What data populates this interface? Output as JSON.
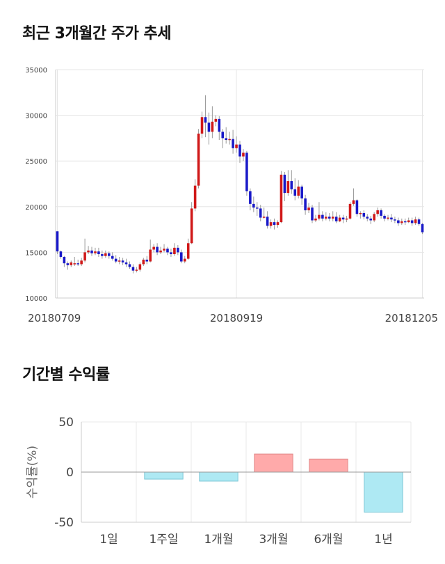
{
  "sections": {
    "price_title": "최근 3개월간 주가 추세",
    "returns_title": "기간별 수익률"
  },
  "chart_data": [
    {
      "type": "candlestick",
      "title": "최근 3개월간 주가 추세",
      "ylim": [
        10000,
        35000
      ],
      "yticks": [
        10000,
        15000,
        20000,
        25000,
        30000,
        35000
      ],
      "xtick_labels": [
        {
          "index": 0,
          "label": "20180709"
        },
        {
          "index": 52,
          "label": "20180919"
        },
        {
          "index": 106,
          "label": "20181205"
        }
      ],
      "grid": true,
      "colors": {
        "up": "#d01818",
        "down": "#1818c8"
      },
      "candles": [
        [
          17300,
          15100,
          17300,
          14800
        ],
        [
          15100,
          14500,
          15200,
          14300
        ],
        [
          14500,
          13800,
          14600,
          13400
        ],
        [
          13800,
          13600,
          14000,
          13100
        ],
        [
          13600,
          13900,
          14100,
          13400
        ],
        [
          13700,
          13800,
          14500,
          13500
        ],
        [
          13800,
          13700,
          14200,
          13500
        ],
        [
          13700,
          14100,
          14400,
          13500
        ],
        [
          14100,
          15000,
          16500,
          13900
        ],
        [
          15000,
          15200,
          15700,
          14800
        ],
        [
          15200,
          14900,
          15600,
          14600
        ],
        [
          14900,
          15100,
          15500,
          14700
        ],
        [
          15100,
          14800,
          15500,
          14500
        ],
        [
          14800,
          14600,
          15200,
          14300
        ],
        [
          14600,
          14900,
          15200,
          14400
        ],
        [
          14900,
          14600,
          15100,
          14300
        ],
        [
          14600,
          14300,
          15000,
          14100
        ],
        [
          14300,
          14000,
          14700,
          13800
        ],
        [
          14000,
          14100,
          14500,
          13700
        ],
        [
          14100,
          13900,
          14400,
          13600
        ],
        [
          13900,
          13700,
          14300,
          13400
        ],
        [
          13700,
          13400,
          14000,
          13200
        ],
        [
          13400,
          13000,
          13700,
          12700
        ],
        [
          13000,
          13100,
          13400,
          12800
        ],
        [
          13100,
          13700,
          13900,
          12900
        ],
        [
          13700,
          14200,
          14400,
          13500
        ],
        [
          14200,
          14000,
          14600,
          13700
        ],
        [
          14000,
          15300,
          16400,
          13900
        ],
        [
          15300,
          15600,
          15900,
          15000
        ],
        [
          15600,
          15000,
          16000,
          14700
        ],
        [
          15000,
          15200,
          15600,
          14800
        ],
        [
          15200,
          15400,
          15900,
          15000
        ],
        [
          15400,
          15000,
          15600,
          14700
        ],
        [
          15000,
          14800,
          15400,
          14500
        ],
        [
          14800,
          15500,
          16000,
          14600
        ],
        [
          15500,
          15000,
          15800,
          14700
        ],
        [
          15000,
          14000,
          15300,
          13800
        ],
        [
          14000,
          14300,
          14600,
          13800
        ],
        [
          14300,
          16000,
          16500,
          14200
        ],
        [
          16000,
          19800,
          20500,
          15900
        ],
        [
          19800,
          22300,
          23000,
          19500
        ],
        [
          22300,
          28000,
          28500,
          22000
        ],
        [
          28000,
          29800,
          30400,
          27500
        ],
        [
          29800,
          29200,
          32200,
          27600
        ],
        [
          29200,
          28200,
          30300,
          26800
        ],
        [
          28200,
          29300,
          31000,
          27500
        ],
        [
          29300,
          29600,
          30000,
          28800
        ],
        [
          29600,
          28200,
          29900,
          27300
        ],
        [
          28200,
          27500,
          28500,
          26400
        ],
        [
          27500,
          27300,
          28700,
          26900
        ],
        [
          27300,
          27400,
          28200,
          26800
        ],
        [
          27400,
          26400,
          28400,
          25800
        ],
        [
          26400,
          26800,
          27700,
          25900
        ],
        [
          26800,
          25500,
          27200,
          24800
        ],
        [
          25500,
          25900,
          26300,
          25000
        ],
        [
          25900,
          21700,
          26100,
          21200
        ],
        [
          21700,
          20300,
          22000,
          19600
        ],
        [
          20300,
          19900,
          21100,
          19400
        ],
        [
          19900,
          19800,
          20500,
          19000
        ],
        [
          19800,
          18800,
          20200,
          18400
        ],
        [
          18800,
          18900,
          19900,
          18700
        ],
        [
          18900,
          17900,
          19500,
          17600
        ],
        [
          17900,
          18300,
          18600,
          17600
        ],
        [
          18300,
          18000,
          18700,
          17500
        ],
        [
          18000,
          18300,
          18500,
          17700
        ],
        [
          18300,
          23500,
          23900,
          18200
        ],
        [
          23500,
          21500,
          23800,
          20600
        ],
        [
          21500,
          22800,
          24000,
          21200
        ],
        [
          22800,
          21900,
          24000,
          21400
        ],
        [
          21900,
          21200,
          23100,
          20700
        ],
        [
          21200,
          22200,
          22900,
          20900
        ],
        [
          22200,
          20900,
          22400,
          20200
        ],
        [
          20900,
          19600,
          21300,
          19100
        ],
        [
          19600,
          19900,
          20400,
          19300
        ],
        [
          19900,
          18500,
          20200,
          18200
        ],
        [
          18500,
          18700,
          19100,
          18300
        ],
        [
          18700,
          19100,
          20500,
          18500
        ],
        [
          19100,
          18700,
          19500,
          18400
        ],
        [
          18700,
          18900,
          19400,
          18500
        ],
        [
          18900,
          18700,
          19300,
          18400
        ],
        [
          18700,
          18900,
          19500,
          18400
        ],
        [
          18900,
          18400,
          19400,
          18200
        ],
        [
          18400,
          18800,
          19100,
          18300
        ],
        [
          18800,
          18600,
          19100,
          18200
        ],
        [
          18600,
          18700,
          19000,
          18300
        ],
        [
          18700,
          20300,
          20500,
          18600
        ],
        [
          20300,
          20700,
          22000,
          20100
        ],
        [
          20700,
          19200,
          20800,
          18900
        ],
        [
          19200,
          19300,
          19500,
          18700
        ],
        [
          19300,
          18900,
          19600,
          18600
        ],
        [
          18900,
          18700,
          19200,
          18400
        ],
        [
          18700,
          18500,
          19000,
          18100
        ],
        [
          18500,
          19200,
          19400,
          18300
        ],
        [
          19200,
          19600,
          19900,
          18900
        ],
        [
          19600,
          19000,
          19800,
          18700
        ],
        [
          19000,
          18700,
          19200,
          18400
        ],
        [
          18700,
          18800,
          19100,
          18500
        ],
        [
          18800,
          18600,
          19200,
          18300
        ],
        [
          18600,
          18500,
          18900,
          18200
        ],
        [
          18500,
          18200,
          18800,
          17900
        ],
        [
          18200,
          18400,
          18700,
          18000
        ],
        [
          18400,
          18300,
          18700,
          18000
        ],
        [
          18300,
          18500,
          18800,
          18200
        ],
        [
          18500,
          18200,
          18800,
          17900
        ],
        [
          18200,
          18600,
          18900,
          18000
        ],
        [
          18600,
          18100,
          18800,
          17900
        ],
        [
          18100,
          17200,
          18200,
          17000
        ]
      ]
    },
    {
      "type": "bar",
      "title": "기간별 수익률",
      "ylabel": "수익률(%)",
      "ylim": [
        -50,
        50
      ],
      "yticks": [
        50,
        0,
        -50
      ],
      "categories": [
        "1일",
        "1주일",
        "1개월",
        "3개월",
        "6개월",
        "1년"
      ],
      "values": [
        0,
        -7,
        -9,
        18,
        13,
        -40
      ],
      "colors": {
        "positive_fill": "#ffaaaa",
        "positive_stroke": "#e08888",
        "negative_fill": "#aee9f3",
        "negative_stroke": "#7cc7d6"
      },
      "grid": true
    }
  ]
}
